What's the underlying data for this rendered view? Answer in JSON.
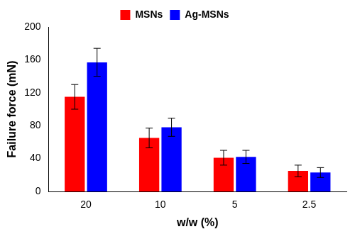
{
  "chart_data": {
    "type": "bar",
    "x_label": "w/w (%)",
    "y_label": "Failure force (mN)",
    "categories": [
      "20",
      "10",
      "5",
      "2.5"
    ],
    "series": [
      {
        "name": "MSNs",
        "color": "#ff0000",
        "values": [
          115,
          65,
          41,
          25
        ],
        "errors": [
          15,
          12,
          9,
          7
        ]
      },
      {
        "name": "Ag-MSNs",
        "color": "#0000ff",
        "values": [
          157,
          78,
          42,
          23
        ],
        "errors": [
          17,
          11,
          8,
          6
        ]
      }
    ],
    "ylim": [
      0,
      200
    ],
    "yticks": [
      0,
      40,
      80,
      120,
      160,
      200
    ],
    "grid": false,
    "legend": "top"
  }
}
